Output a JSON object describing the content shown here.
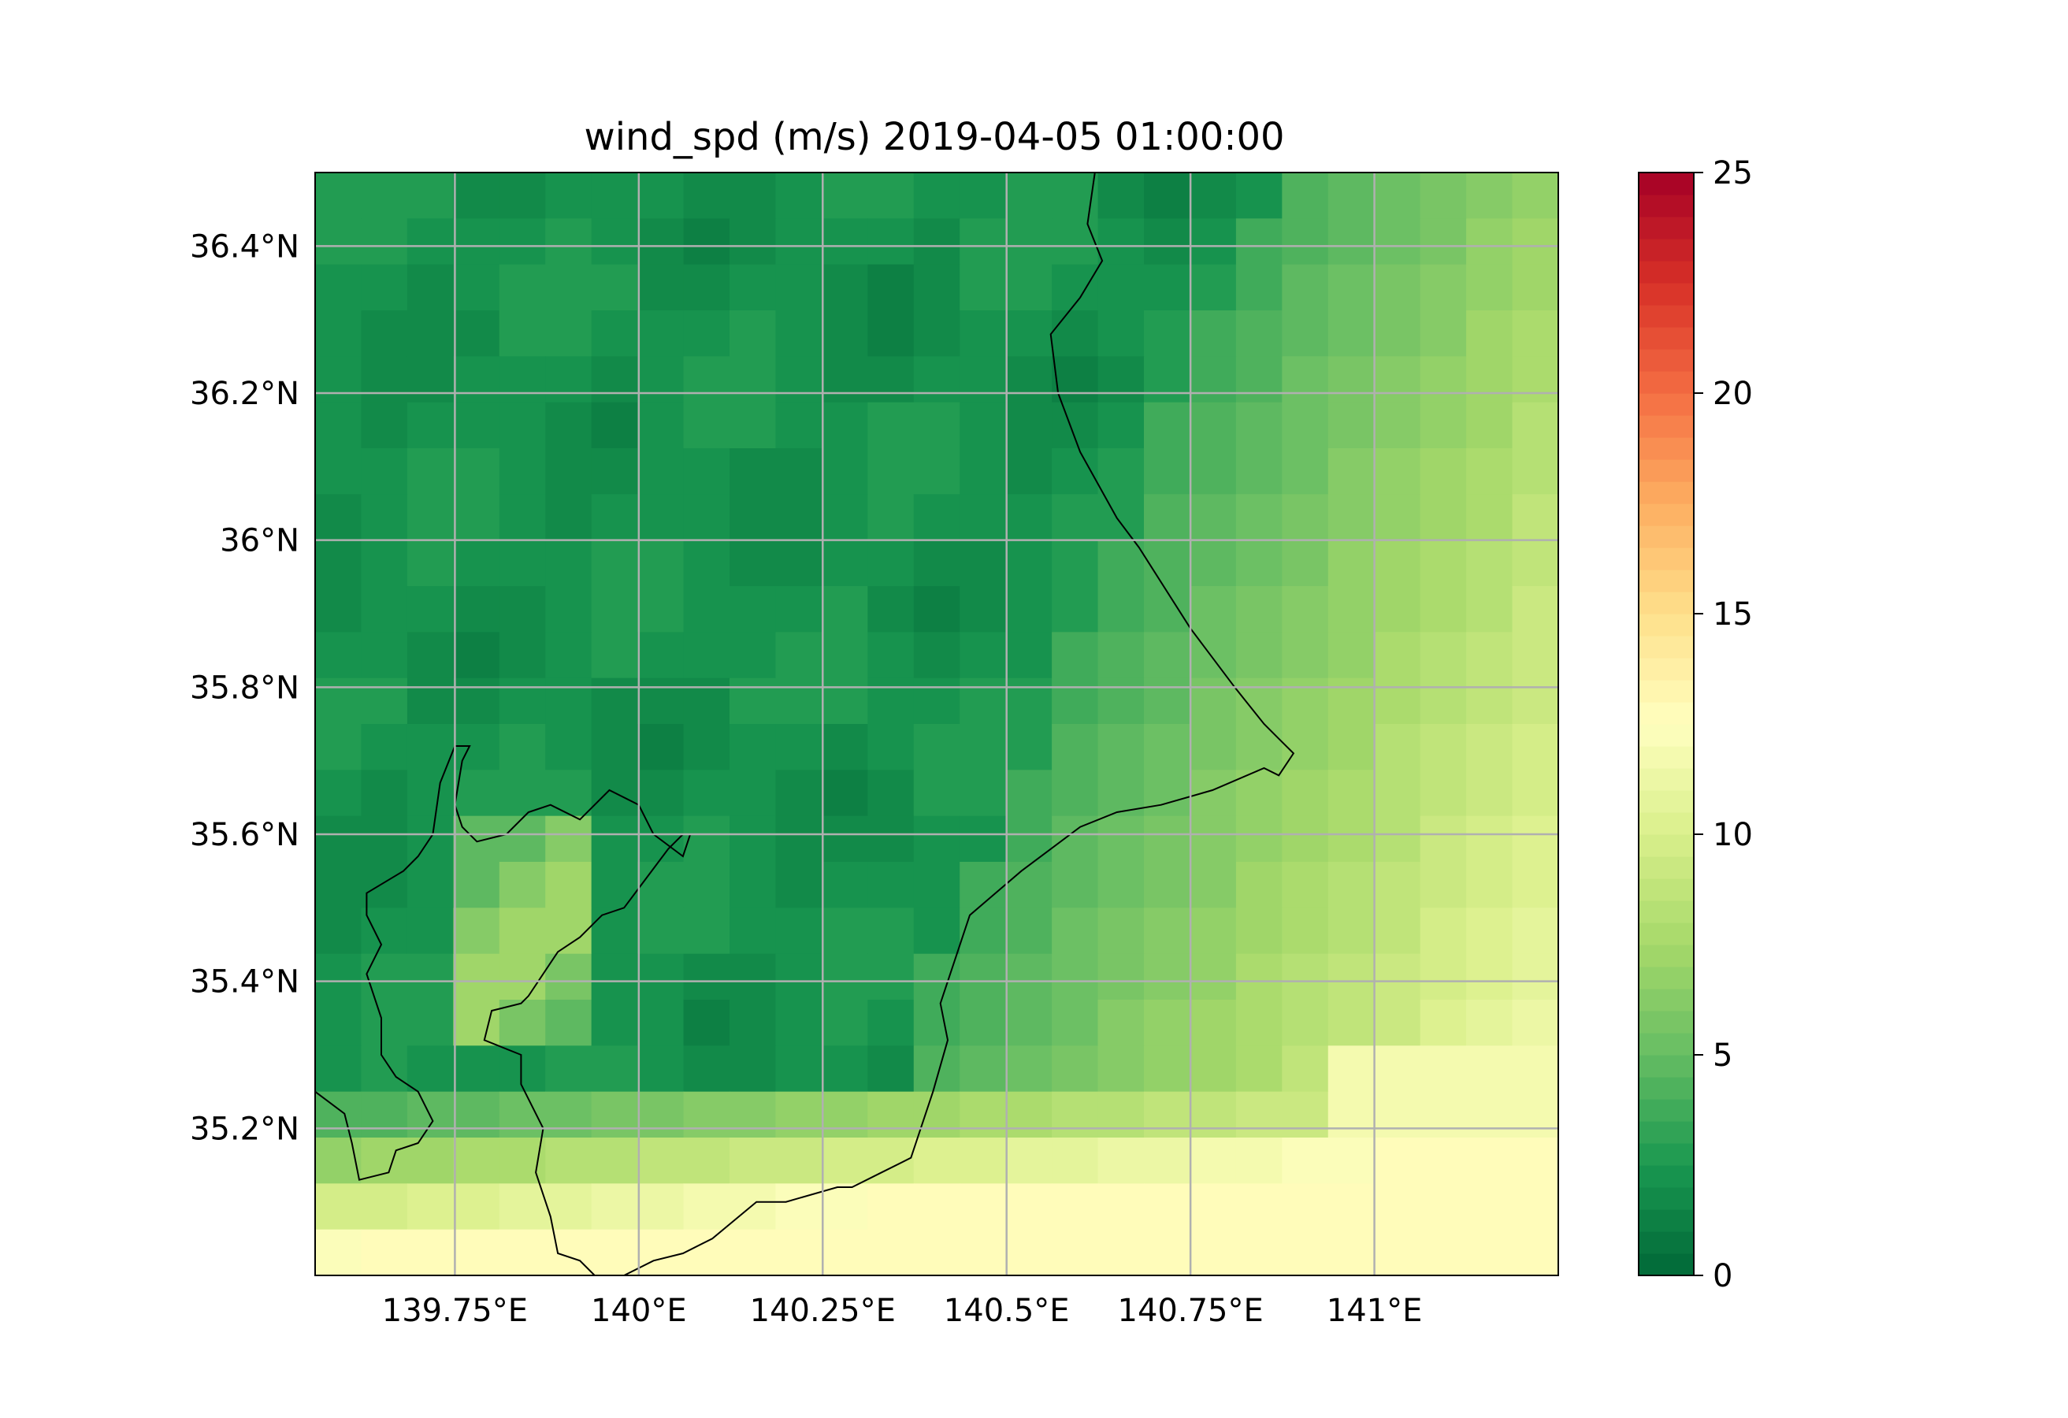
{
  "title": "wind_spd (m/s) 2019-04-05 01:00:00",
  "map": {
    "lon_range": [
      139.56,
      141.25
    ],
    "lat_range": [
      35.0,
      36.5
    ],
    "lon_ticks": [
      {
        "value": 139.75,
        "label": "139.75°E"
      },
      {
        "value": 140.0,
        "label": "140°E"
      },
      {
        "value": 140.25,
        "label": "140.25°E"
      },
      {
        "value": 140.5,
        "label": "140.5°E"
      },
      {
        "value": 140.75,
        "label": "140.75°E"
      },
      {
        "value": 141.0,
        "label": "141°E"
      }
    ],
    "lat_ticks": [
      {
        "value": 35.2,
        "label": "35.2°N"
      },
      {
        "value": 35.4,
        "label": "35.4°N"
      },
      {
        "value": 35.6,
        "label": "35.6°N"
      },
      {
        "value": 35.8,
        "label": "35.8°N"
      },
      {
        "value": 36.0,
        "label": "36°N"
      },
      {
        "value": 36.2,
        "label": "36.2°N"
      },
      {
        "value": 36.4,
        "label": "36.4°N"
      }
    ],
    "gridlines": true,
    "grid_color": "#b0b0b0",
    "coastline_color": "#000000"
  },
  "colorbar": {
    "colormap": "RdYlGn_r",
    "range": [
      0,
      25
    ],
    "ticks": [
      {
        "value": 0,
        "label": "0"
      },
      {
        "value": 5,
        "label": "5"
      },
      {
        "value": 10,
        "label": "10"
      },
      {
        "value": 15,
        "label": "15"
      },
      {
        "value": 20,
        "label": "20"
      },
      {
        "value": 25,
        "label": "25"
      }
    ],
    "levels": 50
  },
  "coastlines": [
    [
      [
        140.62,
        36.5
      ],
      [
        140.61,
        36.43
      ],
      [
        140.63,
        36.38
      ],
      [
        140.6,
        36.33
      ],
      [
        140.56,
        36.28
      ],
      [
        140.57,
        36.2
      ],
      [
        140.6,
        36.12
      ],
      [
        140.65,
        36.03
      ],
      [
        140.68,
        35.99
      ],
      [
        140.75,
        35.88
      ],
      [
        140.81,
        35.8
      ],
      [
        140.85,
        35.75
      ],
      [
        140.87,
        35.73
      ],
      [
        140.89,
        35.71
      ],
      [
        140.87,
        35.68
      ],
      [
        140.85,
        35.69
      ],
      [
        140.78,
        35.66
      ],
      [
        140.71,
        35.64
      ],
      [
        140.65,
        35.63
      ],
      [
        140.6,
        35.61
      ],
      [
        140.52,
        35.55
      ],
      [
        140.45,
        35.49
      ],
      [
        140.41,
        35.37
      ],
      [
        140.42,
        35.32
      ],
      [
        140.4,
        35.25
      ],
      [
        140.37,
        35.16
      ],
      [
        140.33,
        35.14
      ],
      [
        140.29,
        35.12
      ],
      [
        140.27,
        35.12
      ],
      [
        140.2,
        35.1
      ],
      [
        140.16,
        35.1
      ],
      [
        140.1,
        35.05
      ],
      [
        140.06,
        35.03
      ],
      [
        140.02,
        35.02
      ],
      [
        139.98,
        35.0
      ]
    ],
    [
      [
        139.94,
        35.0
      ],
      [
        139.92,
        35.02
      ],
      [
        139.89,
        35.03
      ],
      [
        139.88,
        35.08
      ],
      [
        139.86,
        35.14
      ],
      [
        139.87,
        35.2
      ],
      [
        139.84,
        35.26
      ],
      [
        139.84,
        35.3
      ],
      [
        139.79,
        35.32
      ],
      [
        139.8,
        35.36
      ],
      [
        139.84,
        35.37
      ],
      [
        139.85,
        35.38
      ],
      [
        139.89,
        35.44
      ],
      [
        139.92,
        35.46
      ],
      [
        139.95,
        35.49
      ],
      [
        139.98,
        35.5
      ],
      [
        140.01,
        35.54
      ],
      [
        140.04,
        35.58
      ],
      [
        140.06,
        35.6
      ],
      [
        140.07,
        35.6
      ],
      [
        140.06,
        35.57
      ],
      [
        140.02,
        35.6
      ],
      [
        140.0,
        35.64
      ],
      [
        139.96,
        35.66
      ],
      [
        139.92,
        35.62
      ],
      [
        139.88,
        35.64
      ],
      [
        139.85,
        35.63
      ],
      [
        139.82,
        35.6
      ],
      [
        139.78,
        35.59
      ],
      [
        139.76,
        35.61
      ],
      [
        139.75,
        35.64
      ],
      [
        139.76,
        35.7
      ],
      [
        139.77,
        35.72
      ],
      [
        139.75,
        35.72
      ],
      [
        139.73,
        35.67
      ],
      [
        139.72,
        35.6
      ],
      [
        139.7,
        35.57
      ],
      [
        139.68,
        35.55
      ],
      [
        139.63,
        35.52
      ],
      [
        139.63,
        35.49
      ],
      [
        139.65,
        35.45
      ],
      [
        139.63,
        35.41
      ],
      [
        139.65,
        35.35
      ],
      [
        139.65,
        35.3
      ],
      [
        139.67,
        35.27
      ],
      [
        139.7,
        35.25
      ],
      [
        139.72,
        35.21
      ],
      [
        139.7,
        35.18
      ],
      [
        139.67,
        35.17
      ],
      [
        139.66,
        35.14
      ],
      [
        139.62,
        35.13
      ],
      [
        139.61,
        35.18
      ],
      [
        139.6,
        35.22
      ],
      [
        139.56,
        35.25
      ]
    ]
  ]
}
